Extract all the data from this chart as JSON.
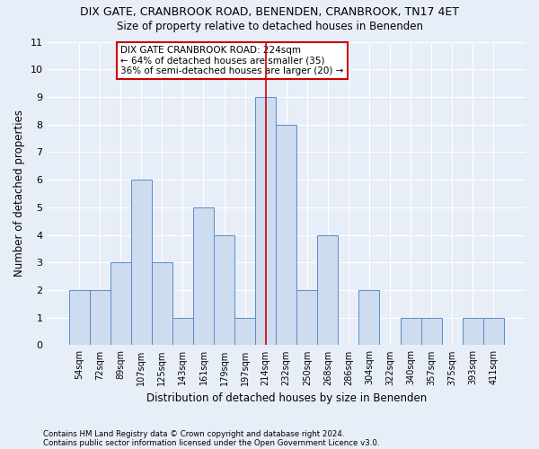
{
  "title1": "DIX GATE, CRANBROOK ROAD, BENENDEN, CRANBROOK, TN17 4ET",
  "title2": "Size of property relative to detached houses in Benenden",
  "xlabel": "Distribution of detached houses by size in Benenden",
  "ylabel": "Number of detached properties",
  "categories": [
    "54sqm",
    "72sqm",
    "89sqm",
    "107sqm",
    "125sqm",
    "143sqm",
    "161sqm",
    "179sqm",
    "197sqm",
    "214sqm",
    "232sqm",
    "250sqm",
    "268sqm",
    "286sqm",
    "304sqm",
    "322sqm",
    "340sqm",
    "357sqm",
    "375sqm",
    "393sqm",
    "411sqm"
  ],
  "values": [
    2,
    2,
    3,
    6,
    3,
    1,
    5,
    4,
    1,
    9,
    8,
    2,
    4,
    0,
    2,
    0,
    1,
    1,
    0,
    1,
    1
  ],
  "bar_color": "#cddcee",
  "bar_edge_color": "#5b8bc9",
  "highlight_index": 9,
  "annotation_text": "DIX GATE CRANBROOK ROAD: 224sqm\n← 64% of detached houses are smaller (35)\n36% of semi-detached houses are larger (20) →",
  "ylim": [
    0,
    11
  ],
  "yticks": [
    0,
    1,
    2,
    3,
    4,
    5,
    6,
    7,
    8,
    9,
    10,
    11
  ],
  "footer1": "Contains HM Land Registry data © Crown copyright and database right 2024.",
  "footer2": "Contains public sector information licensed under the Open Government Licence v3.0.",
  "background_color": "#e8eef8",
  "grid_color": "#ffffff",
  "annotation_box_color": "#ffffff",
  "annotation_box_edge": "#cc0000",
  "vline_color": "#cc0000"
}
